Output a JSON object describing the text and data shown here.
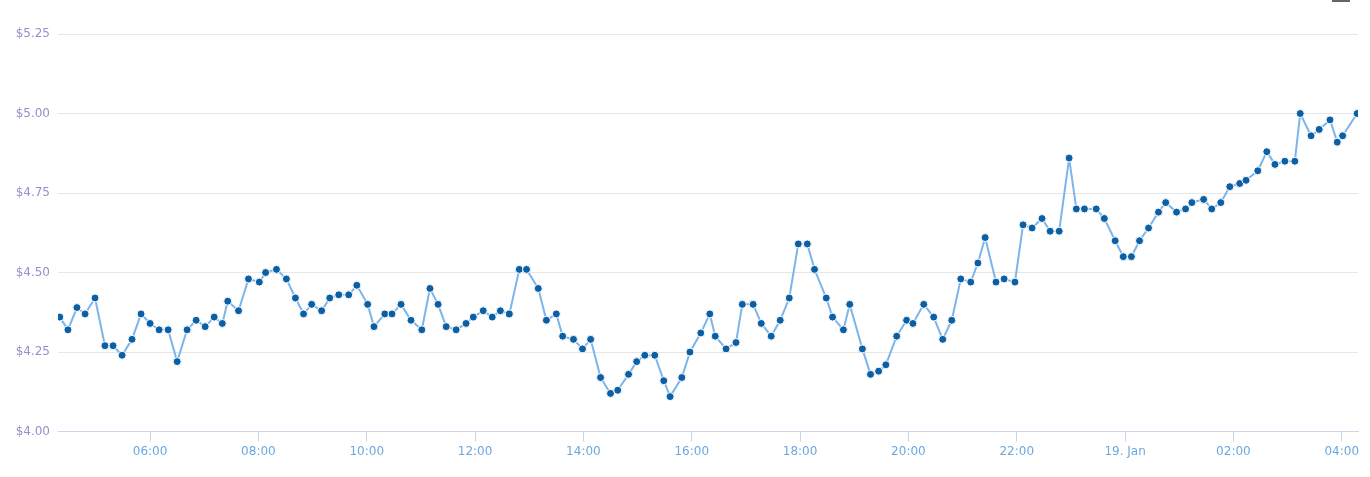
{
  "chart_data": {
    "type": "line",
    "marker": "circle",
    "line_style": "solid",
    "grid": "y",
    "legend": false,
    "x": [
      "--01-18T04:20",
      "--01-18T04:29",
      "--01-18T04:39",
      "--01-18T04:48",
      "--01-18T04:59",
      "--01-18T05:10",
      "--01-18T05:19",
      "--01-18T05:29",
      "--01-18T05:40",
      "--01-18T05:50",
      "--01-18T06:00",
      "--01-18T06:10",
      "--01-18T06:20",
      "--01-18T06:30",
      "--01-18T06:41",
      "--01-18T06:51",
      "--01-18T07:01",
      "--01-18T07:11",
      "--01-18T07:20",
      "--01-18T07:26",
      "--01-18T07:38",
      "--01-18T07:49",
      "--01-18T08:01",
      "--01-18T08:08",
      "--01-18T08:20",
      "--01-18T08:31",
      "--01-18T08:41",
      "--01-18T08:50",
      "--01-18T08:59",
      "--01-18T09:10",
      "--01-18T09:19",
      "--01-18T09:29",
      "--01-18T09:40",
      "--01-18T09:49",
      "--01-18T10:01",
      "--01-18T10:08",
      "--01-18T10:20",
      "--01-18T10:28",
      "--01-18T10:38",
      "--01-18T10:49",
      "--01-18T11:01",
      "--01-18T11:10",
      "--01-18T11:19",
      "--01-18T11:28",
      "--01-18T11:39",
      "--01-18T11:50",
      "--01-18T11:58",
      "--01-18T12:09",
      "--01-18T12:19",
      "--01-18T12:28",
      "--01-18T12:38",
      "--01-18T12:49",
      "--01-18T12:57",
      "--01-18T13:10",
      "--01-18T13:19",
      "--01-18T13:30",
      "--01-18T13:37",
      "--01-18T13:49",
      "--01-18T13:59",
      "--01-18T14:08",
      "--01-18T14:19",
      "--01-18T14:30",
      "--01-18T14:38",
      "--01-18T14:50",
      "--01-18T14:59",
      "--01-18T15:08",
      "--01-18T15:19",
      "--01-18T15:29",
      "--01-18T15:36",
      "--01-18T15:49",
      "--01-18T15:58",
      "--01-18T16:10",
      "--01-18T16:20",
      "--01-18T16:26",
      "--01-18T16:38",
      "--01-18T16:49",
      "--01-18T16:56",
      "--01-18T17:08",
      "--01-18T17:17",
      "--01-18T17:28",
      "--01-18T17:38",
      "--01-18T17:48",
      "--01-18T17:58",
      "--01-18T18:08",
      "--01-18T18:16",
      "--01-18T18:29",
      "--01-18T18:36",
      "--01-18T18:48",
      "--01-18T18:55",
      "--01-18T19:09",
      "--01-18T19:18",
      "--01-18T19:27",
      "--01-18T19:35",
      "--01-18T19:47",
      "--01-18T19:58",
      "--01-18T20:05",
      "--01-18T20:17",
      "--01-18T20:28",
      "--01-18T20:38",
      "--01-18T20:48",
      "--01-18T20:58",
      "--01-18T21:09",
      "--01-18T21:17",
      "--01-18T21:25",
      "--01-18T21:37",
      "--01-18T21:46",
      "--01-18T21:58",
      "--01-18T22:07",
      "--01-18T22:17",
      "--01-18T22:28",
      "--01-18T22:37",
      "--01-18T22:47",
      "--01-18T22:58",
      "--01-18T23:06",
      "--01-18T23:15",
      "--01-18T23:28",
      "--01-18T23:37",
      "--01-18T23:49",
      "--01-18T23:58",
      "--01-19T00:07",
      "--01-19T00:16",
      "--01-19T00:26",
      "--01-19T00:37",
      "--01-19T00:45",
      "--01-19T00:57",
      "--01-19T01:07",
      "--01-19T01:14",
      "--01-19T01:27",
      "--01-19T01:36",
      "--01-19T01:46",
      "--01-19T01:56",
      "--01-19T02:07",
      "--01-19T02:14",
      "--01-19T02:27",
      "--01-19T02:37",
      "--01-19T02:46",
      "--01-19T02:57",
      "--01-19T03:08",
      "--01-19T03:14",
      "--01-19T03:26",
      "--01-19T03:35",
      "--01-19T03:47",
      "--01-19T03:55",
      "--01-19T04:01",
      "--01-19T04:17"
    ],
    "series": [
      {
        "color": "#7cb5ec",
        "values": [
          4.36,
          4.32,
          4.39,
          4.37,
          4.42,
          4.27,
          4.27,
          4.24,
          4.29,
          4.37,
          4.34,
          4.32,
          4.32,
          4.22,
          4.32,
          4.35,
          4.33,
          4.36,
          4.34,
          4.41,
          4.38,
          4.48,
          4.47,
          4.5,
          4.51,
          4.48,
          4.42,
          4.37,
          4.4,
          4.38,
          4.42,
          4.43,
          4.43,
          4.46,
          4.4,
          4.33,
          4.37,
          4.37,
          4.4,
          4.35,
          4.32,
          4.45,
          4.4,
          4.33,
          4.32,
          4.34,
          4.36,
          4.38,
          4.36,
          4.38,
          4.37,
          4.51,
          4.51,
          4.45,
          4.35,
          4.37,
          4.3,
          4.29,
          4.26,
          4.29,
          4.17,
          4.12,
          4.13,
          4.18,
          4.22,
          4.24,
          4.24,
          4.16,
          4.11,
          4.17,
          4.25,
          4.31,
          4.37,
          4.3,
          4.26,
          4.28,
          4.4,
          4.4,
          4.34,
          4.3,
          4.35,
          4.42,
          4.59,
          4.59,
          4.51,
          4.42,
          4.36,
          4.32,
          4.4,
          4.26,
          4.18,
          4.19,
          4.21,
          4.3,
          4.35,
          4.34,
          4.4,
          4.36,
          4.29,
          4.35,
          4.48,
          4.47,
          4.53,
          4.61,
          4.47,
          4.48,
          4.47,
          4.65,
          4.64,
          4.67,
          4.63,
          4.63,
          4.86,
          4.7,
          4.7,
          4.7,
          4.67,
          4.6,
          4.55,
          4.55,
          4.6,
          4.64,
          4.69,
          4.72,
          4.69,
          4.7,
          4.72,
          4.73,
          4.7,
          4.72,
          4.77,
          4.78,
          4.79,
          4.82,
          4.88,
          4.84,
          4.85,
          4.85,
          5.0,
          4.93,
          4.95,
          4.98,
          4.91,
          4.93,
          5.0
        ]
      }
    ],
    "xlim": [
      "--01-18T04:18",
      "--01-19T04:18"
    ],
    "xticks": [
      {
        "value": "--01-18T06:00",
        "label": "06:00"
      },
      {
        "value": "--01-18T08:00",
        "label": "08:00"
      },
      {
        "value": "--01-18T10:00",
        "label": "10:00"
      },
      {
        "value": "--01-18T12:00",
        "label": "12:00"
      },
      {
        "value": "--01-18T14:00",
        "label": "14:00"
      },
      {
        "value": "--01-18T16:00",
        "label": "16:00"
      },
      {
        "value": "--01-18T18:00",
        "label": "18:00"
      },
      {
        "value": "--01-18T20:00",
        "label": "20:00"
      },
      {
        "value": "--01-18T22:00",
        "label": "22:00"
      },
      {
        "value": "--01-19T00:00",
        "label": "19. Jan"
      },
      {
        "value": "--01-19T02:00",
        "label": "02:00"
      },
      {
        "value": "--01-19T04:00",
        "label": "04:00"
      }
    ],
    "ylim": [
      4,
      5.25
    ],
    "yticks": [
      {
        "value": 4,
        "label": "$4.00"
      },
      {
        "value": 4.25,
        "label": "$4.25"
      },
      {
        "value": 4.5,
        "label": "$4.50"
      },
      {
        "value": 4.75,
        "label": "$4.75"
      },
      {
        "value": 5,
        "label": "$5.00"
      },
      {
        "value": 5.25,
        "label": "$5.25"
      }
    ]
  }
}
